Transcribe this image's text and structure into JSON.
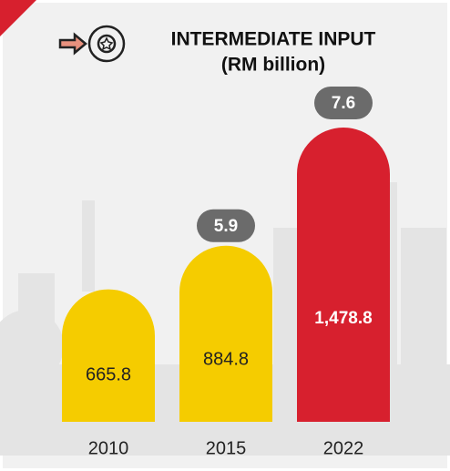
{
  "chart_data": {
    "type": "bar",
    "title": "INTERMEDIATE INPUT",
    "subtitle": "(RM billion)",
    "categories": [
      "2010",
      "2015",
      "2022"
    ],
    "values": [
      665.8,
      884.8,
      1478.8
    ],
    "value_labels": [
      "665.8",
      "884.8",
      "1,478.8"
    ],
    "value_label_colors": [
      "#222222",
      "#222222",
      "#ffffff"
    ],
    "colors": [
      "#f5cc00",
      "#f5cc00",
      "#d7202e"
    ],
    "badges": [
      null,
      5.9,
      7.6
    ],
    "badge_color": "#6b6b6b"
  }
}
